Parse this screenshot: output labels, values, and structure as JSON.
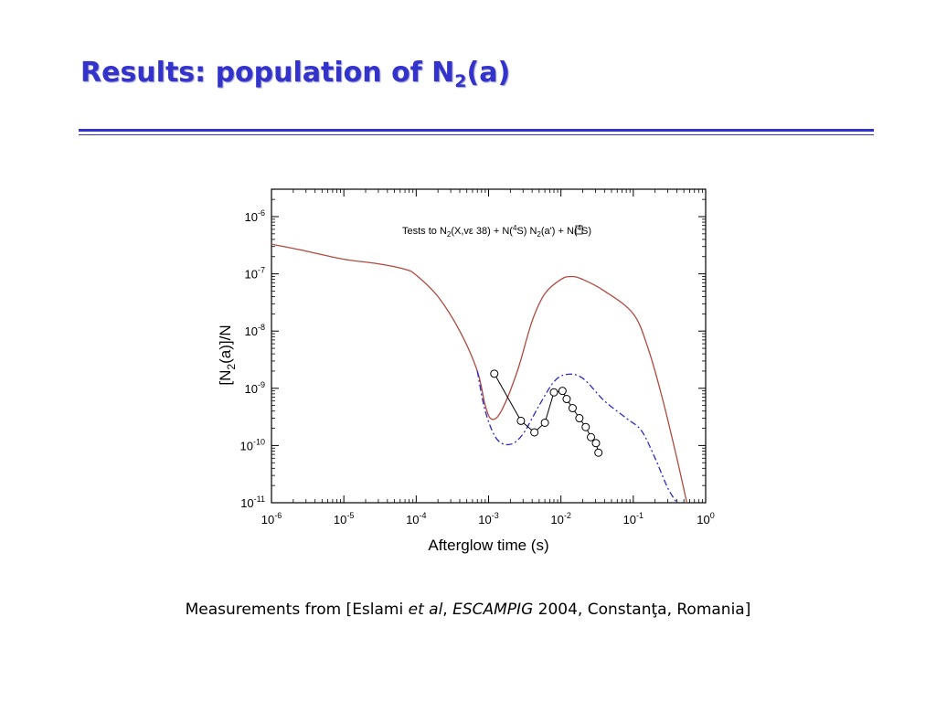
{
  "title": {
    "main": "Results: population of N",
    "sub": "2",
    "suffix": "(a)"
  },
  "caption": {
    "prefix": "Measurements from [Eslami ",
    "et_al": "et al",
    "comma1": ", ",
    "venue": "ESCAMPIG",
    "rest": " 2004, Constanţa, Romania]"
  },
  "colors": {
    "title": "#3333cc",
    "model_solid": "#b04a40",
    "model_dashdot": "#2a2ac8",
    "measurement": "#000000"
  },
  "chart_data": {
    "type": "line",
    "title": "",
    "annotation": {
      "parts": [
        "Tests to N",
        "2",
        "(X,v",
        "ε",
        " 38) + N(",
        "4",
        "S) ",
        "",
        " N",
        "2",
        "(a') + N(",
        "4",
        "S)"
      ]
    },
    "xlabel": "Afterglow time (s)",
    "ylabel": {
      "pre": "[N",
      "sub": "2",
      "post": "(a)]/N"
    },
    "xscale": "log",
    "yscale": "log",
    "xlim": [
      1e-06,
      1
    ],
    "ylim": [
      1e-11,
      3e-06
    ],
    "xticks": [
      {
        "v": -6,
        "base": "10",
        "exp": "-6"
      },
      {
        "v": -5,
        "base": "10",
        "exp": "-5"
      },
      {
        "v": -4,
        "base": "10",
        "exp": "-4"
      },
      {
        "v": -3,
        "base": "10",
        "exp": "-3"
      },
      {
        "v": -2,
        "base": "10",
        "exp": "-2"
      },
      {
        "v": -1,
        "base": "10",
        "exp": "-1"
      },
      {
        "v": 0,
        "base": "10",
        "exp": "0"
      }
    ],
    "yticks": [
      {
        "v": -11,
        "base": "10",
        "exp": "-11"
      },
      {
        "v": -10,
        "base": "10",
        "exp": "-10"
      },
      {
        "v": -9,
        "base": "10",
        "exp": "-9"
      },
      {
        "v": -8,
        "base": "10",
        "exp": "-8"
      },
      {
        "v": -7,
        "base": "10",
        "exp": "-7"
      },
      {
        "v": -6,
        "base": "10",
        "exp": "-6"
      }
    ],
    "grid": false,
    "series": [
      {
        "style": "solid",
        "color": "#b04a40",
        "points": [
          [
            1e-06,
            3.3e-07
          ],
          [
            3e-06,
            2.5e-07
          ],
          [
            1e-05,
            1.8e-07
          ],
          [
            3e-05,
            1.5e-07
          ],
          [
            7e-05,
            1.2e-07
          ],
          [
            0.0001,
            9.5e-08
          ],
          [
            0.0002,
            4e-08
          ],
          [
            0.0004,
            1e-08
          ],
          [
            0.0007,
            2e-09
          ],
          [
            0.0009,
            5e-10
          ],
          [
            0.0011,
            2.9e-10
          ],
          [
            0.0015,
            4e-10
          ],
          [
            0.0025,
            2e-09
          ],
          [
            0.004,
            1.5e-08
          ],
          [
            0.006,
            4.5e-08
          ],
          [
            0.01,
            8e-08
          ],
          [
            0.014,
            9e-08
          ],
          [
            0.02,
            8e-08
          ],
          [
            0.04,
            5e-08
          ],
          [
            0.1,
            2e-08
          ],
          [
            0.16,
            5e-09
          ],
          [
            0.25,
            7e-10
          ],
          [
            0.4,
            6e-11
          ],
          [
            0.55,
            1e-11
          ]
        ]
      },
      {
        "style": "dashdot",
        "color": "#2a2ac8",
        "points": [
          [
            0.0007,
            2e-09
          ],
          [
            0.0009,
            4e-10
          ],
          [
            0.0013,
            1.3e-10
          ],
          [
            0.002,
            1.05e-10
          ],
          [
            0.003,
            1.6e-10
          ],
          [
            0.005,
            5e-10
          ],
          [
            0.008,
            1.3e-09
          ],
          [
            0.012,
            1.75e-09
          ],
          [
            0.02,
            1.5e-09
          ],
          [
            0.04,
            6e-10
          ],
          [
            0.08,
            3e-10
          ],
          [
            0.13,
            1.8e-10
          ],
          [
            0.2,
            6e-11
          ],
          [
            0.3,
            1.8e-11
          ],
          [
            0.4,
            1e-11
          ]
        ]
      },
      {
        "style": "markers",
        "color": "#000000",
        "points": [
          [
            0.0012,
            1.8e-09
          ],
          [
            0.0028,
            2.7e-10
          ],
          [
            0.0043,
            1.7e-10
          ],
          [
            0.006,
            2.5e-10
          ],
          [
            0.008,
            8.5e-10
          ],
          [
            0.0105,
            9e-10
          ],
          [
            0.012,
            6.5e-10
          ],
          [
            0.0145,
            4.5e-10
          ],
          [
            0.018,
            3e-10
          ],
          [
            0.022,
            2.1e-10
          ],
          [
            0.026,
            1.4e-10
          ],
          [
            0.0305,
            1.1e-10
          ],
          [
            0.033,
            7.5e-11
          ]
        ]
      }
    ]
  }
}
